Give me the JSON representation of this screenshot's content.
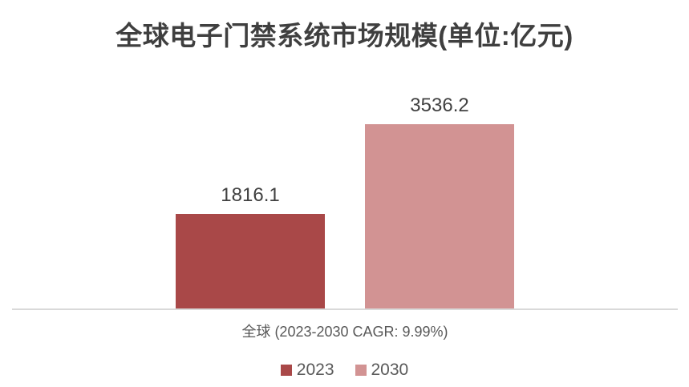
{
  "chart_data": {
    "type": "bar",
    "title": "全球电子门禁系统市场规模(单位:亿元)",
    "categories": [
      "全球 (2023-2030 CAGR: 9.99%)"
    ],
    "series": [
      {
        "name": "2023",
        "values": [
          1816.1
        ],
        "color": "#a94848",
        "data_label": "1816.1"
      },
      {
        "name": "2030",
        "values": [
          3536.2
        ],
        "color": "#d29393",
        "data_label": "3536.2"
      }
    ],
    "xlabel": "",
    "ylabel": "",
    "ylim": [
      0,
      4000
    ],
    "grid": false,
    "y_axis_visible": false,
    "legend_position": "bottom",
    "axis_line_color": "#d9d9d9",
    "title_color": "#3f3f3f",
    "label_color": "#404040",
    "text_color": "#595959"
  }
}
